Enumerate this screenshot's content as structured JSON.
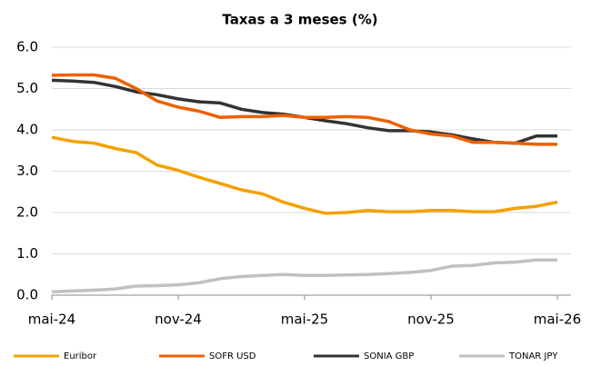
{
  "chart_data": {
    "type": "line",
    "title": "Taxas a 3 meses (%)",
    "categories": [
      "mai-24",
      null,
      null,
      null,
      null,
      null,
      "nov-24",
      null,
      null,
      null,
      null,
      null,
      "mai-25",
      null,
      null,
      null,
      null,
      null,
      "nov-25",
      null,
      null,
      null,
      null,
      null,
      "mai-26"
    ],
    "series": [
      {
        "name": "Euribor",
        "color": "#f5a000",
        "values": [
          3.82,
          3.72,
          3.68,
          3.55,
          3.45,
          3.15,
          3.02,
          2.85,
          2.7,
          2.55,
          2.45,
          2.25,
          2.1,
          1.98,
          2.0,
          2.05,
          2.02,
          2.02,
          2.05,
          2.05,
          2.02,
          2.02,
          2.1,
          2.15,
          2.25
        ]
      },
      {
        "name": "SOFR USD",
        "color": "#ee6000",
        "values": [
          5.32,
          5.33,
          5.33,
          5.25,
          5.0,
          4.7,
          4.55,
          4.45,
          4.3,
          4.32,
          4.32,
          4.35,
          4.3,
          4.3,
          4.32,
          4.3,
          4.2,
          4.0,
          3.9,
          3.85,
          3.7,
          3.7,
          3.68,
          3.65,
          3.65
        ]
      },
      {
        "name": "SONIA GBP",
        "color": "#333333",
        "values": [
          5.2,
          5.18,
          5.15,
          5.05,
          4.92,
          4.85,
          4.75,
          4.68,
          4.65,
          4.5,
          4.42,
          4.38,
          4.3,
          4.22,
          4.15,
          4.05,
          3.98,
          3.98,
          3.95,
          3.88,
          3.78,
          3.7,
          3.68,
          3.85,
          3.85
        ]
      },
      {
        "name": "TONAR JPY",
        "color": "#c0c0c0",
        "values": [
          0.08,
          0.1,
          0.12,
          0.15,
          0.22,
          0.23,
          0.25,
          0.3,
          0.4,
          0.45,
          0.48,
          0.5,
          0.48,
          0.48,
          0.49,
          0.5,
          0.52,
          0.55,
          0.6,
          0.7,
          0.72,
          0.78,
          0.8,
          0.85,
          0.85
        ]
      }
    ],
    "ylim": [
      0,
      6
    ],
    "yticks": [
      {
        "value": 0,
        "label": "0.0"
      },
      {
        "value": 1,
        "label": "1.0"
      },
      {
        "value": 2,
        "label": "2.0"
      },
      {
        "value": 3,
        "label": "3.0"
      },
      {
        "value": 4,
        "label": "4.0"
      },
      {
        "value": 5,
        "label": "5.0"
      },
      {
        "value": 6,
        "label": "6.0"
      }
    ],
    "grid": true,
    "legend": "bottom"
  }
}
